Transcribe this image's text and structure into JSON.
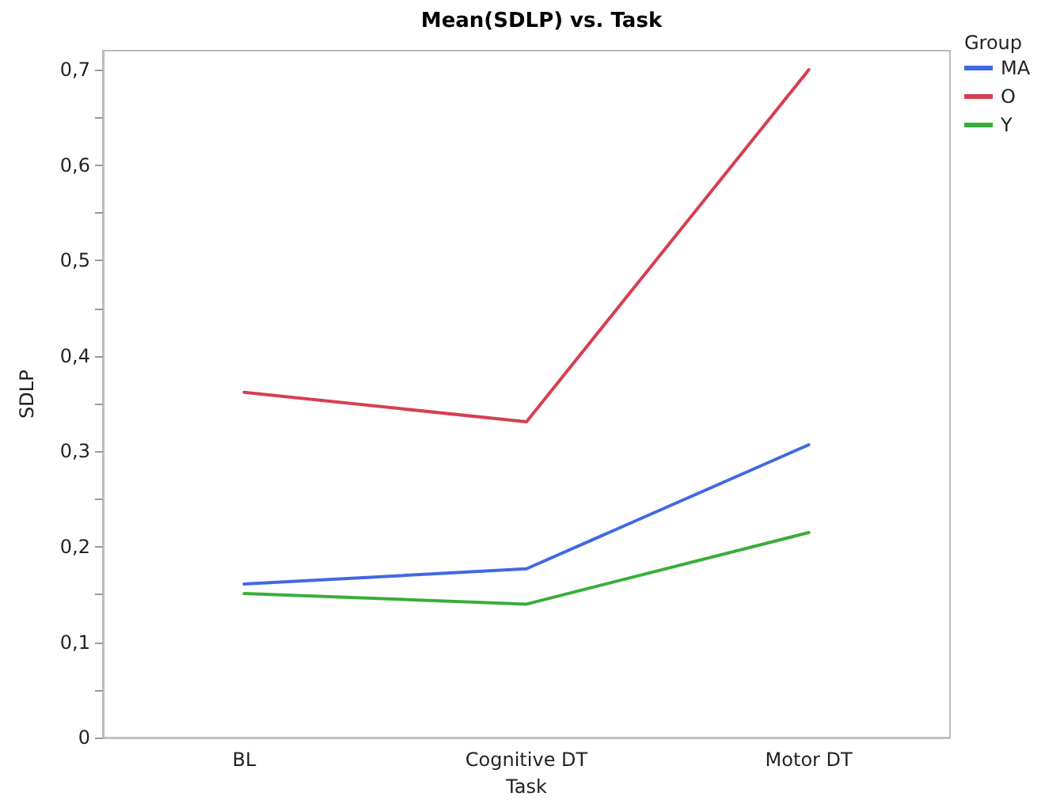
{
  "chart_data": {
    "type": "line",
    "title": "Mean(SDLP) vs. Task",
    "xlabel": "Task",
    "ylabel": "SDLP",
    "legend_title": "Group",
    "categories": [
      "BL",
      "Cognitive DT",
      "Motor DT"
    ],
    "series": [
      {
        "name": "MA",
        "color": "#4169e1",
        "values": [
          0.161,
          0.177,
          0.307
        ]
      },
      {
        "name": "O",
        "color": "#d63f4f",
        "values": [
          0.362,
          0.331,
          0.7
        ]
      },
      {
        "name": "Y",
        "color": "#3aad3a",
        "values": [
          0.151,
          0.14,
          0.215
        ]
      }
    ],
    "ylim": [
      0,
      0.72
    ],
    "yticks": [
      {
        "value": 0,
        "label": "0"
      },
      {
        "value": 0.05,
        "label": null
      },
      {
        "value": 0.1,
        "label": "0,1"
      },
      {
        "value": 0.15,
        "label": null
      },
      {
        "value": 0.2,
        "label": "0,2"
      },
      {
        "value": 0.25,
        "label": null
      },
      {
        "value": 0.3,
        "label": "0,3"
      },
      {
        "value": 0.35,
        "label": null
      },
      {
        "value": 0.4,
        "label": "0,4"
      },
      {
        "value": 0.45,
        "label": null
      },
      {
        "value": 0.5,
        "label": "0,5"
      },
      {
        "value": 0.55,
        "label": null
      },
      {
        "value": 0.6,
        "label": "0,6"
      },
      {
        "value": 0.65,
        "label": null
      },
      {
        "value": 0.7,
        "label": "0,7"
      }
    ],
    "grid": false,
    "legend": "top right",
    "marker": "none",
    "line_style": "solid"
  }
}
